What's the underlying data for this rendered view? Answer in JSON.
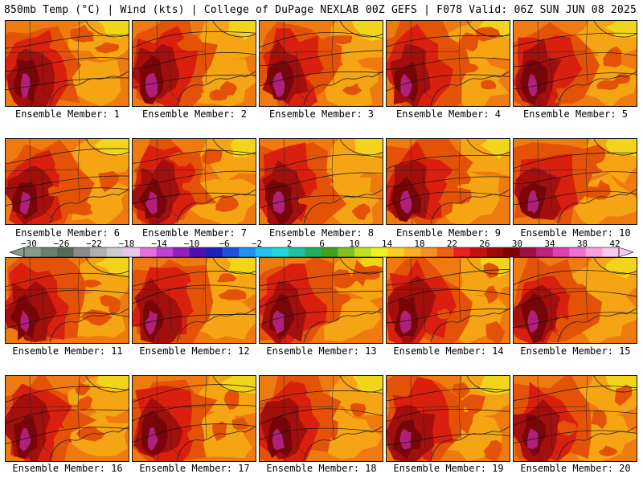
{
  "header": {
    "left": "850mb Temp (°C) | Wind (kts) | College of DuPage NEXLAB",
    "right": "00Z GEFS | F078 Valid: 06Z SUN JUN 08 2025"
  },
  "panels": [
    {
      "label": "Ensemble Member: 1"
    },
    {
      "label": "Ensemble Member: 2"
    },
    {
      "label": "Ensemble Member: 3"
    },
    {
      "label": "Ensemble Member: 4"
    },
    {
      "label": "Ensemble Member: 5"
    },
    {
      "label": "Ensemble Member: 6"
    },
    {
      "label": "Ensemble Member: 7"
    },
    {
      "label": "Ensemble Member: 8"
    },
    {
      "label": "Ensemble Member: 9"
    },
    {
      "label": "Ensemble Member: 10"
    },
    {
      "label": "Ensemble Member: 11"
    },
    {
      "label": "Ensemble Member: 12"
    },
    {
      "label": "Ensemble Member: 13"
    },
    {
      "label": "Ensemble Member: 14"
    },
    {
      "label": "Ensemble Member: 15"
    },
    {
      "label": "Ensemble Member: 16"
    },
    {
      "label": "Ensemble Member: 17"
    },
    {
      "label": "Ensemble Member: 18"
    },
    {
      "label": "Ensemble Member: 19"
    },
    {
      "label": "Ensemble Member: 20"
    }
  ],
  "colorbar": {
    "ticks": [
      "−30",
      "−26",
      "−22",
      "−18",
      "−14",
      "−10",
      "−6",
      "−2",
      "2",
      "6",
      "10",
      "14",
      "18",
      "22",
      "26",
      "30",
      "34",
      "38",
      "42"
    ],
    "colors": [
      "#8a9a8a",
      "#6e7e6e",
      "#596959",
      "#8c8c8c",
      "#b0b0b0",
      "#cccccc",
      "#e8c8e8",
      "#e070e0",
      "#c040d0",
      "#9020c0",
      "#5010b0",
      "#2020c0",
      "#2050e0",
      "#2090f0",
      "#20c0f0",
      "#20d8d8",
      "#20c0a0",
      "#20b060",
      "#40a020",
      "#80c020",
      "#c0e020",
      "#f0f020",
      "#f8d020",
      "#f8b020",
      "#f89020",
      "#f06010",
      "#e82020",
      "#c81010",
      "#a00808",
      "#800000",
      "#a01040",
      "#c02080",
      "#e040b0",
      "#f070d0",
      "#f8a0e0",
      "#f8c8f0"
    ]
  },
  "palette": {
    "light_orange": "#f5a414",
    "orange": "#ee7a10",
    "dark_orange": "#e45208",
    "red": "#d9200f",
    "dark_red": "#a30f0c",
    "maroon": "#7a0508",
    "magenta": "#b0207a",
    "yellow": "#f2d41a"
  }
}
